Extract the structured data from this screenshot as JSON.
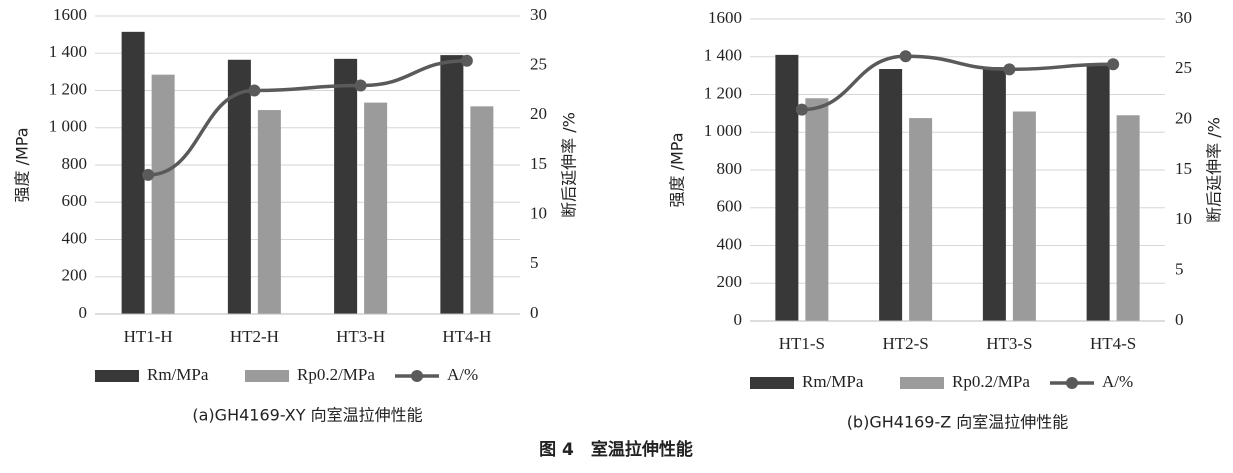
{
  "chart_data": [
    {
      "type": "bar",
      "caption": "(a)GH4169-XY 向室温拉伸性能",
      "ylabel": "强度 /MPa",
      "y2label": "断后延伸率 /%",
      "categories": [
        "HT1-H",
        "HT2-H",
        "HT3-H",
        "HT4-H"
      ],
      "series": [
        {
          "name": "Rm/MPa",
          "type": "bar",
          "color": "#383838",
          "values": [
            1515,
            1365,
            1370,
            1390
          ]
        },
        {
          "name": "Rp0.2/MPa",
          "type": "bar",
          "color": "#9b9b9b",
          "values": [
            1285,
            1095,
            1135,
            1115
          ]
        },
        {
          "name": "A/%",
          "type": "line",
          "axis": "y2",
          "color": "#5a5a5a",
          "values": [
            14,
            22.5,
            23,
            25.5
          ]
        }
      ],
      "ylim": [
        0,
        1600
      ],
      "yticks": [
        0,
        200,
        400,
        600,
        800,
        {
          "value": 1000,
          "label": "1 000"
        },
        {
          "value": 1200,
          "label": "1 200"
        },
        {
          "value": 1400,
          "label": "1 400"
        },
        1600
      ],
      "y2lim": [
        0,
        30
      ],
      "y2ticks": [
        0,
        5,
        10,
        15,
        20,
        25,
        30
      ],
      "grid": true
    },
    {
      "type": "bar",
      "caption": "(b)GH4169-Z 向室温拉伸性能",
      "ylabel": "强度 /MPa",
      "y2label": "断后延伸率 /%",
      "categories": [
        "HT1-S",
        "HT2-S",
        "HT3-S",
        "HT4-S"
      ],
      "series": [
        {
          "name": "Rm/MPa",
          "type": "bar",
          "color": "#383838",
          "values": [
            1410,
            1335,
            1345,
            1360
          ]
        },
        {
          "name": "Rp0.2/MPa",
          "type": "bar",
          "color": "#9b9b9b",
          "values": [
            1180,
            1075,
            1110,
            1090
          ]
        },
        {
          "name": "A/%",
          "type": "line",
          "axis": "y2",
          "color": "#5a5a5a",
          "values": [
            21,
            26.3,
            25,
            25.5
          ]
        }
      ],
      "ylim": [
        0,
        1600
      ],
      "yticks": [
        0,
        200,
        400,
        600,
        800,
        {
          "value": 1000,
          "label": "1 000"
        },
        {
          "value": 1200,
          "label": "1 200"
        },
        {
          "value": 1400,
          "label": "1 400"
        },
        1600
      ],
      "y2lim": [
        0,
        30
      ],
      "y2ticks": [
        0,
        5,
        10,
        15,
        20,
        25,
        30
      ],
      "grid": true
    }
  ],
  "caption": "图 4　室温拉伸性能"
}
